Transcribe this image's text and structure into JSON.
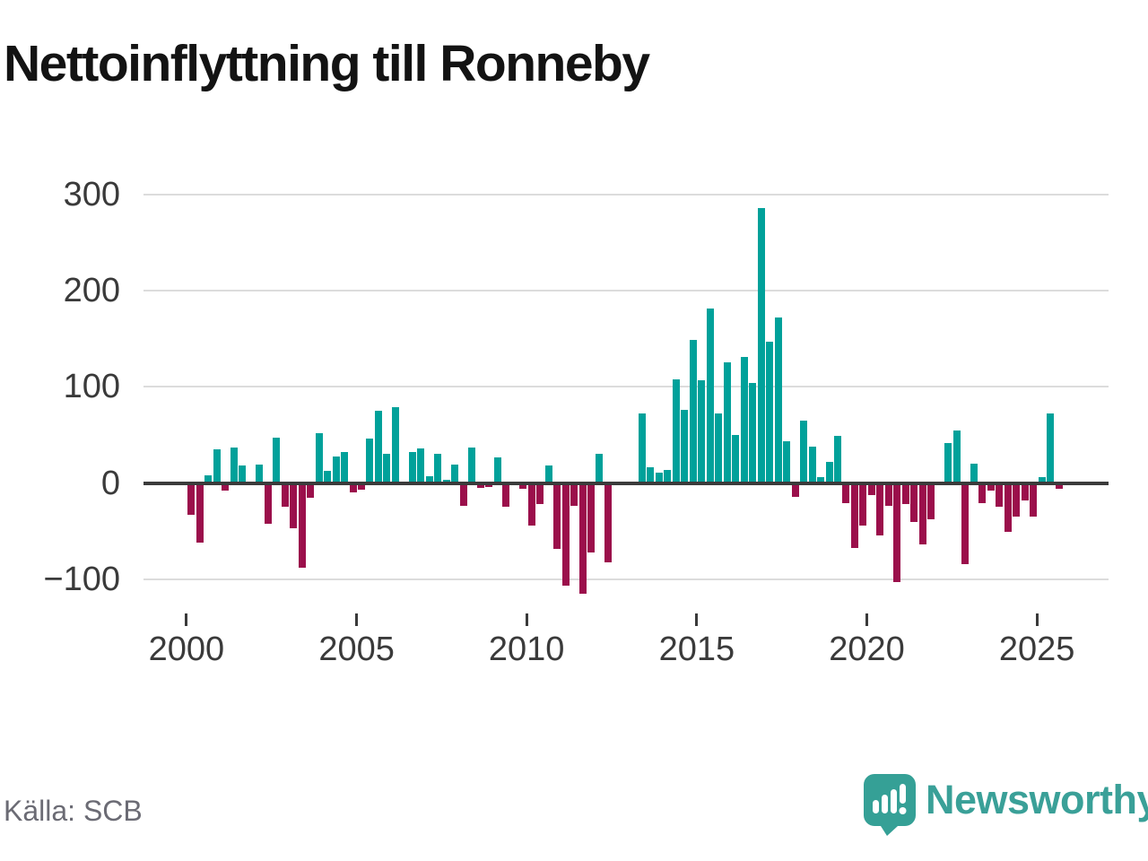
{
  "title": "Nettoinflyttning till Ronneby",
  "source": "Källa: SCB",
  "branding": {
    "logo_text": "Newsworthy",
    "logo_icon": "bar-chart-speech-bubble-icon"
  },
  "colors": {
    "positive_bar": "#00a19a",
    "negative_bar": "#9b0f4b",
    "zero_axis": "#3b3b3b",
    "gridline": "#dcdcdc",
    "title_text": "#131313",
    "tick_label": "#3a3a3a",
    "source_text": "#6b6b74",
    "brand_teal": "#3aa098"
  },
  "chart_data": {
    "type": "bar",
    "title": "Nettoinflyttning till Ronneby",
    "x_unit": "quarter",
    "start": "2000Q1",
    "end": "2025Q3",
    "grid": true,
    "y_ticks": [
      300,
      200,
      100,
      0,
      -100
    ],
    "ylim": [
      -130,
      315
    ],
    "x_tick_labels": [
      "2000",
      "2005",
      "2010",
      "2015",
      "2020",
      "2025"
    ],
    "values": [
      -33,
      -62,
      8,
      35,
      -8,
      37,
      18,
      0,
      19,
      -42,
      47,
      -25,
      -47,
      -88,
      -15,
      52,
      13,
      28,
      32,
      -10,
      -7,
      46,
      75,
      30,
      79,
      0,
      32,
      36,
      7,
      30,
      3,
      19,
      -24,
      37,
      -5,
      -4,
      27,
      -25,
      0,
      -6,
      -44,
      -22,
      18,
      -69,
      -107,
      -24,
      -115,
      -72,
      30,
      -83,
      0,
      0,
      0,
      72,
      16,
      11,
      14,
      108,
      76,
      149,
      107,
      182,
      72,
      126,
      50,
      131,
      104,
      286,
      147,
      172,
      43,
      -14,
      65,
      38,
      6,
      22,
      49,
      -21,
      -68,
      -44,
      -13,
      -55,
      -24,
      -103,
      -22,
      -41,
      -64,
      -38,
      0,
      42,
      55,
      -84,
      20,
      -21,
      -8,
      -25,
      -51,
      -35,
      -18,
      -35,
      6,
      72,
      -6
    ]
  }
}
